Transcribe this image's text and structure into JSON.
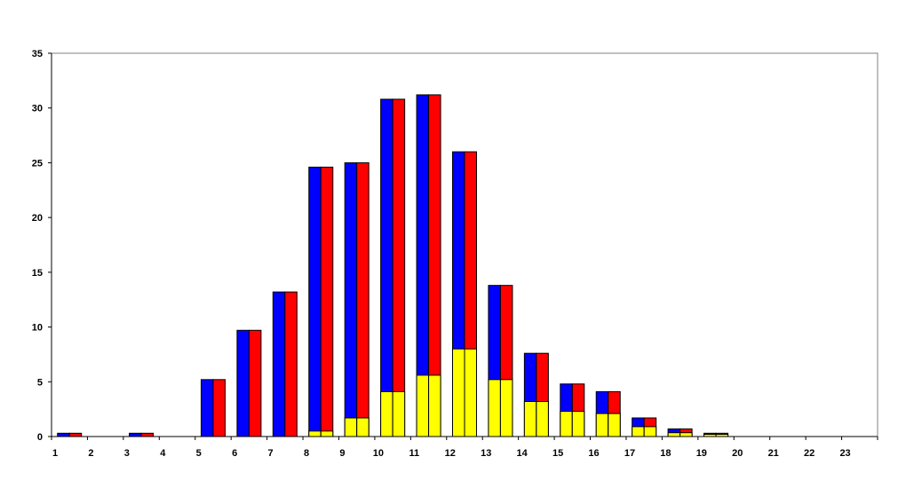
{
  "chart_data": {
    "type": "bar",
    "categories": [
      "1",
      "2",
      "3",
      "4",
      "5",
      "6",
      "7",
      "8",
      "9",
      "10",
      "11",
      "12",
      "13",
      "14",
      "15",
      "16",
      "17",
      "18",
      "19",
      "20",
      "21",
      "22",
      "23"
    ],
    "series": [
      {
        "color": "#0000FF",
        "values": [
          0.3,
          0,
          0.3,
          0,
          5.2,
          9.7,
          13.2,
          24.6,
          25.0,
          30.8,
          31.2,
          26.0,
          13.8,
          7.6,
          4.8,
          4.1,
          1.7,
          0.7,
          0.3,
          0,
          0,
          0,
          0
        ],
        "yellow_portion": [
          0,
          0,
          0,
          0,
          0,
          0,
          0,
          0.5,
          1.7,
          4.1,
          5.6,
          8.0,
          5.2,
          3.2,
          2.3,
          2.1,
          0.9,
          0.35,
          0.2,
          0,
          0,
          0,
          0
        ]
      },
      {
        "color": "#FF0000",
        "values": [
          0.3,
          0,
          0.3,
          0,
          5.2,
          9.7,
          13.2,
          24.6,
          25.0,
          30.8,
          31.2,
          26.0,
          13.8,
          7.6,
          4.8,
          4.1,
          1.7,
          0.7,
          0.3,
          0,
          0,
          0,
          0
        ],
        "yellow_portion": [
          0,
          0,
          0,
          0,
          0,
          0,
          0,
          0.5,
          1.7,
          4.1,
          5.6,
          8.0,
          5.2,
          3.2,
          2.3,
          2.1,
          0.9,
          0.35,
          0.2,
          0,
          0,
          0,
          0
        ]
      }
    ],
    "overlay_color": "#FFFF00",
    "ylim": [
      0,
      35
    ],
    "yticks": [
      0,
      5,
      10,
      15,
      20,
      25,
      30,
      35
    ],
    "grid": false,
    "title": "",
    "xlabel": "",
    "ylabel": ""
  }
}
